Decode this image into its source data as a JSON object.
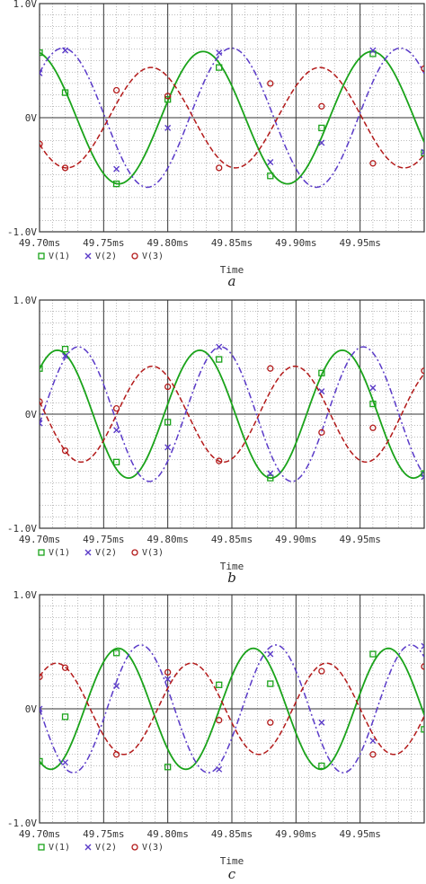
{
  "chart_data": [
    {
      "type": "line",
      "panel_label": "a",
      "xlabel": "Time",
      "ylim": [
        -1.0,
        1.0
      ],
      "xlim_ms": [
        49.7,
        50.0
      ],
      "y_ticks": [
        "1.0V",
        "0V",
        "-1.0V"
      ],
      "x_ticks": [
        "49.70ms",
        "49.75ms",
        "49.80ms",
        "49.85ms",
        "49.90ms",
        "49.95ms"
      ],
      "grid": true,
      "legend_position": "bottom-left",
      "series": [
        {
          "name": "V(1)",
          "marker": "square",
          "color": "#1aa31a",
          "dash": "solid",
          "amplitude": 0.58,
          "period_ms": 0.1316,
          "phase_deg": 101,
          "x_ms": [
            49.7,
            49.72,
            49.74,
            49.76,
            49.78,
            49.8,
            49.82,
            49.84,
            49.86,
            49.88,
            49.9,
            49.92,
            49.94,
            49.96,
            49.98,
            50.0
          ],
          "y": [
            0.57,
            0.22,
            -0.31,
            -0.58,
            -0.35,
            0.16,
            0.55,
            0.44,
            -0.05,
            -0.51,
            -0.52,
            -0.09,
            0.41,
            0.56,
            0.21,
            -0.31
          ]
        },
        {
          "name": "V(2)",
          "marker": "x",
          "color": "#5a3ac8",
          "dash": "dashdot",
          "amplitude": 0.61,
          "period_ms": 0.1316,
          "phase_deg": 40,
          "x_ms": [
            49.7,
            49.72,
            49.74,
            49.76,
            49.78,
            49.8,
            49.82,
            49.84,
            49.86,
            49.88,
            49.9,
            49.92,
            49.94,
            49.96,
            49.98,
            50.0
          ],
          "y": [
            0.39,
            0.59,
            0.13,
            -0.45,
            -0.55,
            -0.09,
            0.46,
            0.57,
            0.13,
            -0.39,
            -0.61,
            -0.22,
            0.37,
            0.59,
            0.27,
            -0.3
          ]
        },
        {
          "name": "V(3)",
          "marker": "circle",
          "color": "#b31a1a",
          "dash": "dashed",
          "amplitude": 0.44,
          "period_ms": 0.1316,
          "phase_deg": 212,
          "x_ms": [
            49.7,
            49.72,
            49.74,
            49.76,
            49.78,
            49.8,
            49.82,
            49.84,
            49.86,
            49.88,
            49.9,
            49.92,
            49.94,
            49.96,
            49.98,
            50.0
          ],
          "y": [
            -0.23,
            -0.44,
            -0.22,
            0.24,
            0.43,
            0.19,
            -0.26,
            -0.44,
            -0.17,
            0.3,
            0.42,
            0.1,
            -0.33,
            -0.4,
            0.0,
            0.43
          ]
        }
      ]
    },
    {
      "type": "line",
      "panel_label": "b",
      "xlabel": "Time",
      "ylim": [
        -1.0,
        1.0
      ],
      "xlim_ms": [
        49.7,
        50.0
      ],
      "y_ticks": [
        "1.0V",
        "0V",
        "-1.0V"
      ],
      "x_ticks": [
        "49.70ms",
        "49.75ms",
        "49.80ms",
        "49.85ms",
        "49.90ms",
        "49.95ms"
      ],
      "grid": true,
      "legend_position": "bottom-left",
      "series": [
        {
          "name": "V(1)",
          "marker": "square",
          "color": "#1aa31a",
          "dash": "solid",
          "amplitude": 0.56,
          "period_ms": 0.1111,
          "phase_deg": 45,
          "x_ms": [
            49.7,
            49.72,
            49.74,
            49.76,
            49.78,
            49.8,
            49.82,
            49.84,
            49.86,
            49.88,
            49.9,
            49.92,
            49.94,
            49.96,
            49.98,
            50.0
          ],
          "y": [
            0.4,
            0.57,
            0.15,
            -0.42,
            -0.52,
            -0.07,
            0.51,
            0.48,
            -0.1,
            -0.56,
            -0.24,
            0.36,
            0.55,
            0.09,
            -0.48,
            -0.52
          ]
        },
        {
          "name": "V(2)",
          "marker": "x",
          "color": "#5a3ac8",
          "dash": "dashdot",
          "amplitude": 0.59,
          "period_ms": 0.1111,
          "phase_deg": -8,
          "x_ms": [
            49.7,
            49.72,
            49.74,
            49.76,
            49.78,
            49.8,
            49.82,
            49.84,
            49.86,
            49.88,
            49.9,
            49.92,
            49.94,
            49.96,
            49.98,
            50.0
          ],
          "y": [
            -0.08,
            0.51,
            0.47,
            -0.14,
            -0.59,
            -0.29,
            0.37,
            0.59,
            0.08,
            -0.52,
            -0.46,
            0.2,
            0.58,
            0.23,
            -0.41,
            -0.55
          ]
        },
        {
          "name": "V(3)",
          "marker": "circle",
          "color": "#b31a1a",
          "dash": "dashed",
          "amplitude": 0.42,
          "period_ms": 0.1111,
          "phase_deg": 165,
          "x_ms": [
            49.7,
            49.72,
            49.74,
            49.76,
            49.78,
            49.8,
            49.82,
            49.84,
            49.86,
            49.88,
            49.9,
            49.92,
            49.94,
            49.96,
            49.98,
            50.0
          ],
          "y": [
            0.11,
            -0.32,
            -0.39,
            0.05,
            0.42,
            0.24,
            -0.24,
            -0.41,
            -0.02,
            0.4,
            0.31,
            -0.16,
            -0.42,
            -0.12,
            0.34,
            0.38
          ]
        }
      ]
    },
    {
      "type": "line",
      "panel_label": "c",
      "xlabel": "Time",
      "ylim": [
        -1.0,
        1.0
      ],
      "xlim_ms": [
        49.7,
        50.0
      ],
      "y_ticks": [
        "1.0V",
        "0V",
        "-1.0V"
      ],
      "x_ticks": [
        "49.70ms",
        "49.75ms",
        "49.80ms",
        "49.85ms",
        "49.90ms",
        "49.95ms"
      ],
      "grid": true,
      "legend_position": "bottom-left",
      "series": [
        {
          "name": "V(1)",
          "marker": "square",
          "color": "#1aa31a",
          "dash": "solid",
          "amplitude": 0.53,
          "period_ms": 0.1053,
          "phase_deg": -120,
          "x_ms": [
            49.7,
            49.72,
            49.74,
            49.76,
            49.78,
            49.8,
            49.82,
            49.84,
            49.86,
            49.88,
            49.9,
            49.92,
            49.94,
            49.96,
            49.98,
            50.0
          ],
          "y": [
            -0.46,
            -0.07,
            0.46,
            0.49,
            -0.03,
            -0.51,
            -0.35,
            0.21,
            0.53,
            0.22,
            -0.35,
            -0.5,
            -0.04,
            0.48,
            0.39,
            -0.18
          ]
        },
        {
          "name": "V(2)",
          "marker": "x",
          "color": "#5a3ac8",
          "dash": "dashdot",
          "amplitude": 0.56,
          "period_ms": 0.1053,
          "phase_deg": -180,
          "x_ms": [
            49.7,
            49.72,
            49.74,
            49.76,
            49.78,
            49.8,
            49.82,
            49.84,
            49.86,
            49.88,
            49.9,
            49.92,
            49.94,
            49.96,
            49.98,
            50.0
          ],
          "y": [
            -0.0,
            -0.47,
            -0.38,
            0.2,
            0.56,
            0.26,
            -0.33,
            -0.53,
            -0.07,
            0.48,
            0.44,
            -0.12,
            -0.56,
            -0.28,
            0.31,
            0.55
          ]
        },
        {
          "name": "V(3)",
          "marker": "circle",
          "color": "#b31a1a",
          "dash": "dashed",
          "amplitude": 0.4,
          "period_ms": 0.1053,
          "phase_deg": 45,
          "x_ms": [
            49.7,
            49.72,
            49.74,
            49.76,
            49.78,
            49.8,
            49.82,
            49.84,
            49.86,
            49.88,
            49.9,
            49.92,
            49.94,
            49.96,
            49.98,
            50.0
          ],
          "y": [
            0.28,
            0.36,
            -0.08,
            -0.4,
            -0.14,
            0.32,
            0.35,
            -0.1,
            -0.4,
            -0.12,
            0.34,
            0.33,
            -0.16,
            -0.4,
            -0.08,
            0.37
          ]
        }
      ]
    }
  ]
}
